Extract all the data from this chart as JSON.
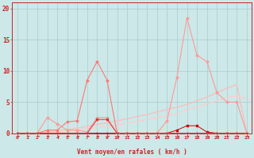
{
  "title": "",
  "xlabel": "Vent moyen/en rafales ( km/h )",
  "background_color": "#cce8e8",
  "grid_color": "#aacccc",
  "x_ticks": [
    0,
    1,
    2,
    3,
    4,
    5,
    6,
    7,
    8,
    9,
    10,
    11,
    12,
    13,
    14,
    15,
    16,
    17,
    18,
    19,
    20,
    21,
    22,
    23
  ],
  "y_ticks": [
    0,
    5,
    10,
    15,
    20
  ],
  "xlim": [
    -0.5,
    23.5
  ],
  "ylim": [
    0,
    21
  ],
  "series": [
    {
      "x": [
        0,
        1,
        2,
        3,
        4,
        5,
        6,
        7,
        8,
        9,
        10,
        11,
        12,
        13,
        14,
        15,
        16,
        17,
        18,
        19,
        20,
        21,
        22,
        23
      ],
      "y": [
        0,
        0,
        0,
        0,
        0,
        0,
        0,
        0,
        0,
        0,
        0,
        0,
        0,
        0,
        0,
        0,
        0.5,
        1.2,
        1.2,
        0.2,
        0,
        0,
        0,
        0
      ],
      "color": "#cc0000",
      "lw": 0.7,
      "marker": "s",
      "ms": 1.5
    },
    {
      "x": [
        0,
        1,
        2,
        3,
        4,
        5,
        6,
        7,
        8,
        9,
        10,
        11,
        12,
        13,
        14,
        15,
        16,
        17,
        18,
        19,
        20,
        21,
        22,
        23
      ],
      "y": [
        0,
        0,
        0,
        0.5,
        0.5,
        1.8,
        2.0,
        8.5,
        11.5,
        8.5,
        0,
        0,
        0,
        0,
        0,
        0,
        0,
        0,
        0,
        0,
        0,
        0,
        0,
        0
      ],
      "color": "#ff7777",
      "lw": 0.8,
      "marker": "D",
      "ms": 1.5
    },
    {
      "x": [
        0,
        1,
        2,
        3,
        4,
        5,
        6,
        7,
        8,
        9,
        10,
        11,
        12,
        13,
        14,
        15,
        16,
        17,
        18,
        19,
        20,
        21,
        22,
        23
      ],
      "y": [
        0,
        0,
        0,
        2.5,
        1.5,
        0.5,
        0.5,
        0.2,
        2.5,
        2.5,
        0,
        0,
        0,
        0,
        0,
        2.0,
        9.0,
        18.5,
        12.5,
        11.5,
        6.5,
        5.0,
        5.0,
        0
      ],
      "color": "#ff9999",
      "lw": 0.8,
      "marker": "D",
      "ms": 1.5
    },
    {
      "x": [
        0,
        1,
        2,
        3,
        4,
        5,
        6,
        7,
        8,
        9,
        10,
        11,
        12,
        13,
        14,
        15,
        16,
        17,
        18,
        19,
        20,
        21,
        22,
        23
      ],
      "y": [
        0,
        0,
        0,
        0,
        0,
        0,
        0,
        0,
        2.2,
        2.2,
        0,
        0,
        0,
        0,
        0,
        0,
        0,
        0,
        0,
        0,
        0,
        0,
        0,
        0
      ],
      "color": "#dd3333",
      "lw": 0.7,
      "marker": "s",
      "ms": 1.5
    },
    {
      "x": [
        0,
        1,
        2,
        3,
        4,
        5,
        6,
        7,
        8,
        9,
        10,
        11,
        12,
        13,
        14,
        15,
        16,
        17,
        18,
        19,
        20,
        21,
        22,
        23
      ],
      "y": [
        0,
        0,
        0,
        0.2,
        0.4,
        0.6,
        0.8,
        1.1,
        1.4,
        1.7,
        2.0,
        2.3,
        2.7,
        3.0,
        3.4,
        3.8,
        4.2,
        4.6,
        5.2,
        5.8,
        6.5,
        7.2,
        7.8,
        0
      ],
      "color": "#ffbbbb",
      "lw": 0.9,
      "marker": null,
      "ms": 0
    },
    {
      "x": [
        0,
        1,
        2,
        3,
        4,
        5,
        6,
        7,
        8,
        9,
        10,
        11,
        12,
        13,
        14,
        15,
        16,
        17,
        18,
        19,
        20,
        21,
        22,
        23
      ],
      "y": [
        0,
        0,
        0,
        0,
        0.1,
        0.3,
        0.5,
        0.7,
        0.9,
        1.1,
        1.3,
        1.6,
        1.9,
        2.2,
        2.5,
        2.8,
        3.2,
        3.8,
        4.2,
        4.7,
        5.2,
        5.7,
        6.0,
        5.5
      ],
      "color": "#ffcccc",
      "lw": 0.9,
      "marker": null,
      "ms": 0
    }
  ],
  "axis_color": "#cc2222",
  "tick_color": "#cc2222",
  "label_color": "#cc2222"
}
